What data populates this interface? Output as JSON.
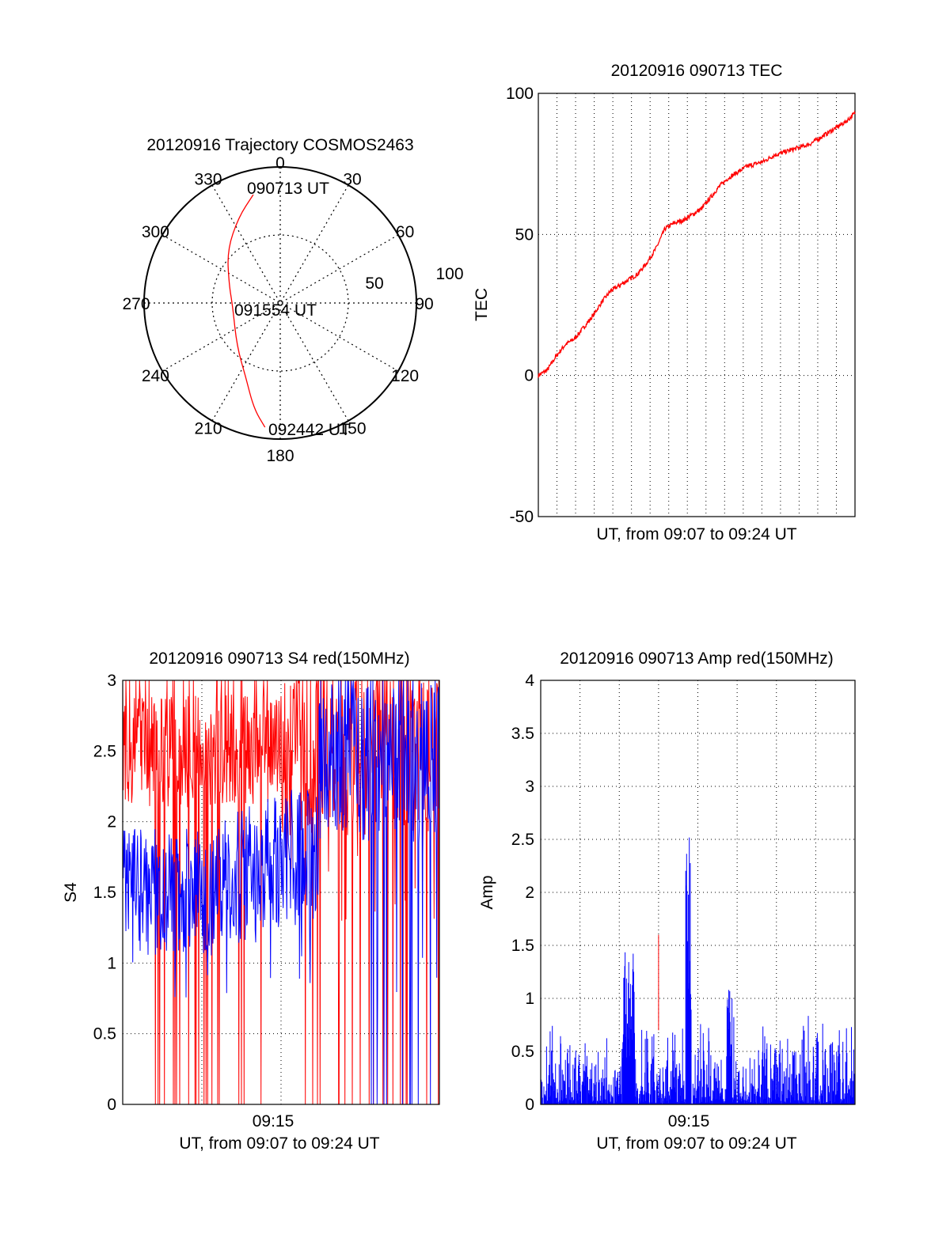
{
  "chart_data": [
    {
      "type": "polar",
      "title": "20120916 Trajectory COSMOS2463",
      "azimuth_labels": [
        "0",
        "30",
        "60",
        "90",
        "120",
        "150",
        "180",
        "210",
        "240",
        "270",
        "300",
        "330"
      ],
      "radial_labels": [
        "50",
        "100"
      ],
      "trajectory": [
        {
          "az": 346,
          "el": 82
        },
        {
          "az": 334,
          "el": 70
        },
        {
          "az": 315,
          "el": 55
        },
        {
          "az": 290,
          "el": 40
        },
        {
          "az": 265,
          "el": 35
        },
        {
          "az": 225,
          "el": 45
        },
        {
          "az": 205,
          "el": 60
        },
        {
          "az": 194,
          "el": 80
        },
        {
          "az": 187,
          "el": 92
        }
      ],
      "annotations": [
        {
          "text": "090713 UT",
          "az": 346,
          "el": 82
        },
        {
          "text": "091554 UT",
          "az": 265,
          "el": 35
        },
        {
          "text": "092442 UT",
          "az": 187,
          "el": 92
        }
      ],
      "colors": {
        "trajectory": "#ff0000"
      }
    },
    {
      "type": "line",
      "title": "20120916 090713 TEC",
      "xlabel": "UT, from 09:07 to 09:24 UT",
      "ylabel": "TEC",
      "ylim": [
        -50,
        100
      ],
      "yticks": [
        "100",
        "50",
        "0",
        "-50"
      ],
      "xlim": [
        0,
        17.5
      ],
      "series": [
        {
          "color": "#ff0000",
          "x": [
            0,
            0.5,
            1,
            1.5,
            2,
            2.5,
            3,
            3.5,
            4,
            4.5,
            5,
            5.5,
            6,
            6.5,
            7,
            7.5,
            8,
            8.5,
            9,
            9.5,
            10,
            10.5,
            11,
            11.5,
            12,
            12.5,
            13,
            13.5,
            14,
            14.5,
            15,
            15.5,
            16,
            16.5,
            17,
            17.5
          ],
          "values": [
            0,
            2,
            7,
            11,
            13,
            17,
            21,
            26,
            30,
            32,
            34,
            36,
            40,
            45,
            52,
            54,
            55,
            57,
            59,
            63,
            67,
            70,
            72,
            74,
            75,
            76,
            78,
            79,
            80,
            81,
            82,
            84,
            86,
            88,
            90,
            93
          ]
        }
      ]
    },
    {
      "type": "line",
      "title": "20120916 090713 S4 red(150MHz)",
      "xlabel": "UT, from 09:07 to 09:24 UT",
      "ylabel": "S4",
      "ylim": [
        0,
        3
      ],
      "yticks": [
        "3",
        "2.5",
        "2",
        "1.5",
        "1",
        "0.5",
        "0"
      ],
      "xtick_labels": [
        "09:15"
      ],
      "colors": {
        "red": "#ff0000",
        "blue": "#0000ff"
      }
    },
    {
      "type": "line",
      "title": "20120916 090713 Amp red(150MHz)",
      "xlabel": "UT, from 09:07 to 09:24 UT",
      "ylabel": "Amp",
      "ylim": [
        0,
        4
      ],
      "yticks": [
        "4",
        "3.5",
        "3",
        "2.5",
        "2",
        "1.5",
        "1",
        "0.5",
        "0"
      ],
      "xtick_labels": [
        "09:15"
      ],
      "colors": {
        "red": "#ff0000",
        "blue": "#0000ff"
      }
    }
  ]
}
